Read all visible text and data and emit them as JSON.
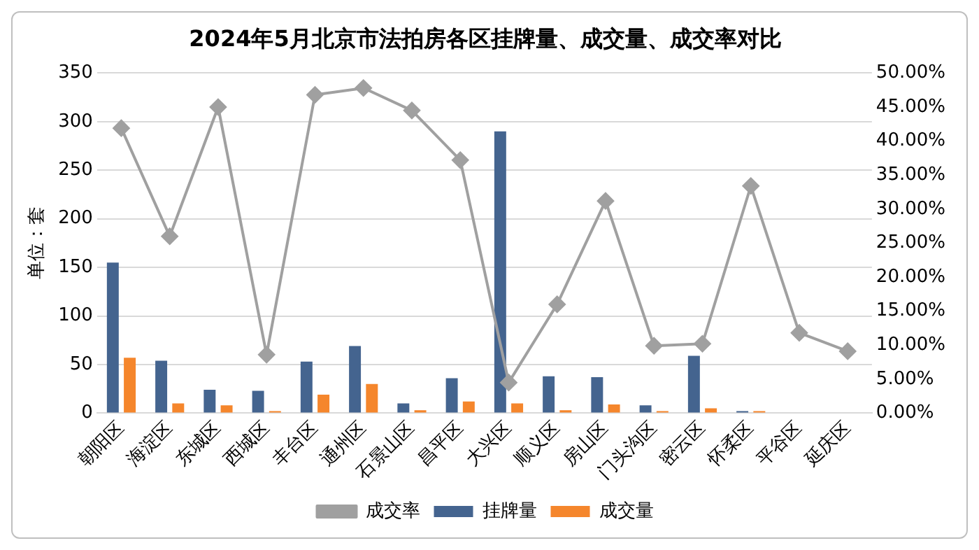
{
  "chart_data": {
    "type": "bar",
    "title": "2024年5月北京市法拍房各区挂牌量、成交量、成交率对比",
    "ylabel": "单位：套",
    "categories": [
      "朝阳区",
      "海淀区",
      "东城区",
      "西城区",
      "丰台区",
      "通州区",
      "石景山区",
      "昌平区",
      "大兴区",
      "顺义区",
      "房山区",
      "门头沟区",
      "密云区",
      "怀柔区",
      "平谷区",
      "延庆区"
    ],
    "series": [
      {
        "name": "挂牌量",
        "color": "#44648f",
        "values": [
          155,
          54,
          24,
          23,
          53,
          69,
          10,
          36,
          290,
          38,
          37,
          8,
          59,
          2,
          0,
          0
        ]
      },
      {
        "name": "成交量",
        "color": "#f5862c",
        "values": [
          57,
          10,
          8,
          2,
          19,
          30,
          3,
          12,
          10,
          3,
          9,
          2,
          5,
          2,
          0,
          0
        ]
      },
      {
        "name": "成交率",
        "type": "line",
        "axis": "y2",
        "color": "#a0a0a0",
        "values": [
          41.9,
          26.0,
          45.0,
          8.6,
          46.8,
          47.8,
          44.5,
          37.2,
          4.5,
          16.0,
          31.2,
          9.9,
          10.2,
          33.4,
          11.8,
          9.1
        ]
      }
    ],
    "ylim": [
      0,
      350
    ],
    "yticks": [
      0,
      50,
      100,
      150,
      200,
      250,
      300,
      350
    ],
    "y2lim": [
      0,
      50
    ],
    "y2ticks": [
      {
        "value": 0,
        "label": "0.00%"
      },
      {
        "value": 5,
        "label": "5.00%"
      },
      {
        "value": 10,
        "label": "10.00%"
      },
      {
        "value": 15,
        "label": "15.00%"
      },
      {
        "value": 20,
        "label": "20.00%"
      },
      {
        "value": 25,
        "label": "25.00%"
      },
      {
        "value": 30,
        "label": "30.00%"
      },
      {
        "value": 35,
        "label": "35.00%"
      },
      {
        "value": 40,
        "label": "40.00%"
      },
      {
        "value": 45,
        "label": "45.00%"
      },
      {
        "value": 50,
        "label": "50.00%"
      }
    ],
    "grid": "y",
    "legend": "bottom",
    "marker": "diamond",
    "line_style": "solid"
  }
}
